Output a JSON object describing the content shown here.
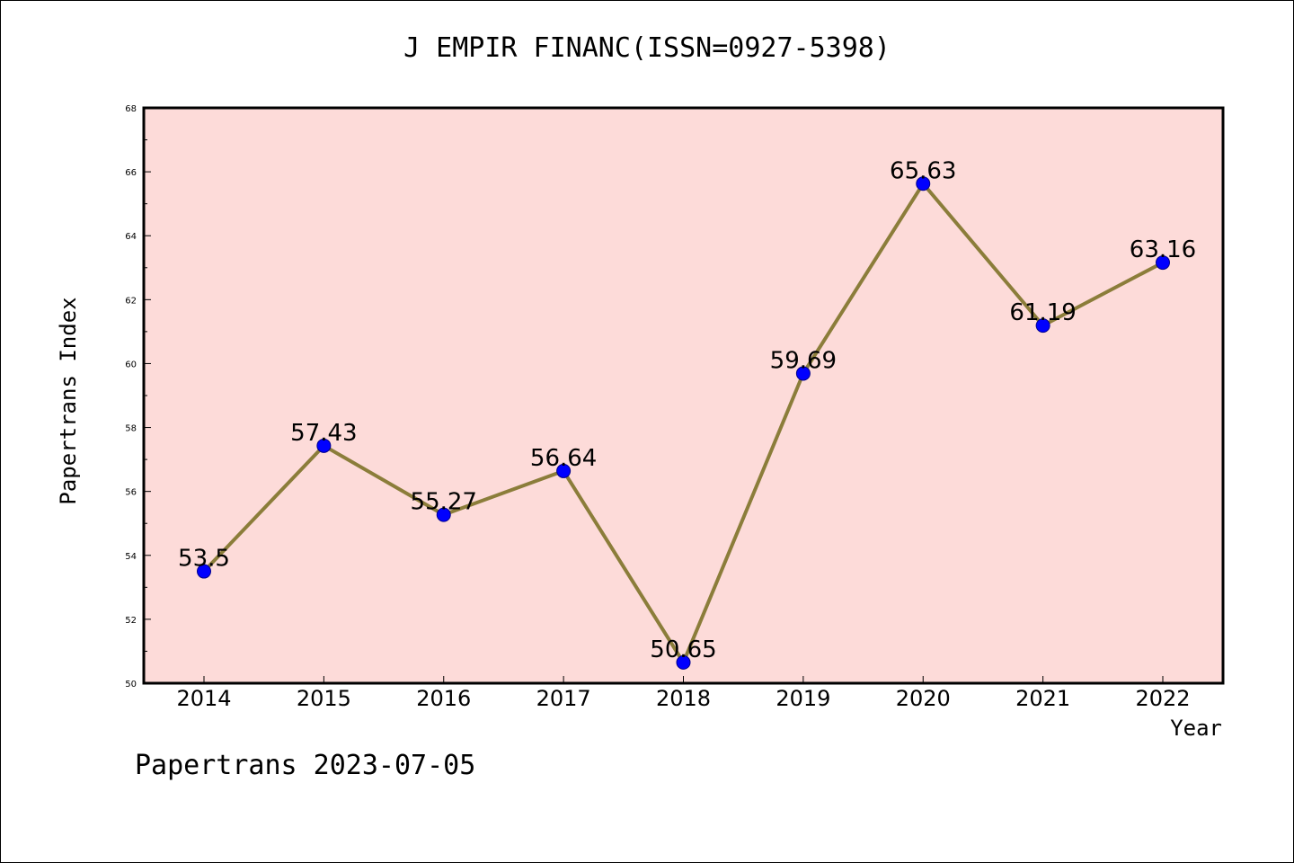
{
  "chart_data": {
    "type": "line",
    "title": "J EMPIR FINANC(ISSN=0927-5398)",
    "xlabel": "Year",
    "ylabel": "Papertrans Index",
    "footer": "Papertrans 2023-07-05",
    "categories": [
      "2014",
      "2015",
      "2016",
      "2017",
      "2018",
      "2019",
      "2020",
      "2021",
      "2022"
    ],
    "series": [
      {
        "values": [
          53.5,
          57.43,
          55.27,
          56.64,
          50.65,
          59.69,
          65.63,
          61.19,
          63.16
        ],
        "labels": [
          "53.5",
          "57.43",
          "55.27",
          "56.64",
          "50.65",
          "59.69",
          "65.63",
          "61.19",
          "63.16"
        ]
      }
    ],
    "ylim": [
      50,
      68
    ],
    "yticks": [
      50,
      52,
      54,
      56,
      58,
      60,
      62,
      64,
      66,
      68
    ],
    "grid": false,
    "colors": {
      "plot_background": "#fddbd9",
      "line": "#8b7d3a",
      "marker": "#0000ff"
    }
  }
}
